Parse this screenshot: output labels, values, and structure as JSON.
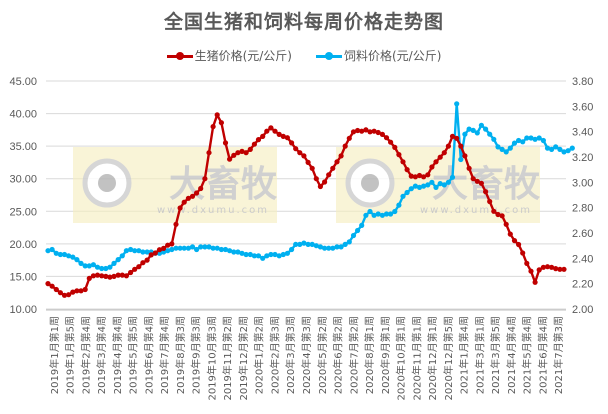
{
  "title": "全国生猪和饲料每周价格走势图",
  "legend": [
    {
      "label": "生猪价格(元/公斤)",
      "color": "#C00000"
    },
    {
      "label": "饲料价格(元/公斤)",
      "color": "#00B0F0"
    }
  ],
  "watermark": {
    "brand": "大畜牧",
    "url": "www.dxumu.com"
  },
  "chart_data": {
    "type": "line",
    "title": "全国生猪和饲料每周价格走势图",
    "xlabel": "",
    "ylabel_left": "",
    "ylabel_right": "",
    "y_left": {
      "min": 10,
      "max": 45,
      "ticks": [
        "10.00",
        "15.00",
        "20.00",
        "25.00",
        "30.00",
        "35.00",
        "40.00",
        "45.00"
      ]
    },
    "y_right": {
      "min": 2.0,
      "max": 3.8,
      "ticks": [
        "2.00",
        "2.20",
        "2.40",
        "2.60",
        "2.80",
        "3.00",
        "3.20",
        "3.40",
        "3.60",
        "3.80"
      ]
    },
    "grid": true,
    "legend_position": "top",
    "x_tick_labels": [
      "2019年1月第1周",
      "2019年1月第5周",
      "2019年2月第4周",
      "2019年3月第4周",
      "2019年4月第4周",
      "2019年5月第5周",
      "2019年6月第4周",
      "2019年7月第4周",
      "2019年8月第3周",
      "2019年9月第3周",
      "2019年10月第3周",
      "2019年11月第2周",
      "2019年12月第2周",
      "2020年1月第2周",
      "2020年2月第3周",
      "2020年3月第3周",
      "2020年4月第3周",
      "2020年5月第2周",
      "2020年6月第2周",
      "2020年7月第2周",
      "2020年8月第1周",
      "2020年9月第1周",
      "2020年10月第1周",
      "2020年11月第1周",
      "2020年12月第1周",
      "2020年12月第5周",
      "2021年1月第4周",
      "2021年3月第1周",
      "2021年3月第5周",
      "2021年4月第4周",
      "2021年5月第4周",
      "2021年6月第4周",
      "2021年7月第3周"
    ],
    "series": [
      {
        "name": "生猪价格(元/公斤)",
        "axis": "left",
        "color": "#C00000",
        "values": [
          13.9,
          13.5,
          13.0,
          12.5,
          12.1,
          12.2,
          12.6,
          12.8,
          12.8,
          13.0,
          14.7,
          15.1,
          15.2,
          15.1,
          15.0,
          14.9,
          15.0,
          15.2,
          15.2,
          15.1,
          15.6,
          16.1,
          16.5,
          17.1,
          17.5,
          18.3,
          18.6,
          19.1,
          19.3,
          19.8,
          20.0,
          23.0,
          25.5,
          26.4,
          27.0,
          27.3,
          27.8,
          28.5,
          30.0,
          34.0,
          38.0,
          39.8,
          38.6,
          35.5,
          33.0,
          33.6,
          34.0,
          34.2,
          34.0,
          34.5,
          35.3,
          36.0,
          36.5,
          37.3,
          37.8,
          37.3,
          36.8,
          36.5,
          36.3,
          35.5,
          34.6,
          34.0,
          33.5,
          32.5,
          31.6,
          30.0,
          28.8,
          29.5,
          30.6,
          31.6,
          32.6,
          33.5,
          35.0,
          36.2,
          37.2,
          37.4,
          37.3,
          37.5,
          37.2,
          37.3,
          37.1,
          36.8,
          36.3,
          35.6,
          34.8,
          33.7,
          32.6,
          31.4,
          30.4,
          30.3,
          30.5,
          30.3,
          30.6,
          31.8,
          32.6,
          33.3,
          34.0,
          35.0,
          36.5,
          36.2,
          35.0,
          33.5,
          31.6,
          30.0,
          29.6,
          29.3,
          28.0,
          26.5,
          25.0,
          24.5,
          24.3,
          23.0,
          21.5,
          20.5,
          19.9,
          18.6,
          17.0,
          15.8,
          14.1,
          16.0,
          16.4,
          16.5,
          16.4,
          16.2,
          16.1,
          16.1
        ],
        "peak": {
          "label": "2019年11月第1周",
          "value": 39.8
        },
        "trough": {
          "label": "2021年6月第4周",
          "value": 14.1
        }
      },
      {
        "name": "饲料价格(元/公斤)",
        "axis": "right",
        "color": "#00B0F0",
        "values": [
          2.46,
          2.47,
          2.44,
          2.43,
          2.43,
          2.42,
          2.41,
          2.39,
          2.36,
          2.34,
          2.34,
          2.35,
          2.33,
          2.32,
          2.32,
          2.33,
          2.36,
          2.39,
          2.42,
          2.46,
          2.47,
          2.46,
          2.46,
          2.45,
          2.45,
          2.45,
          2.44,
          2.44,
          2.45,
          2.46,
          2.47,
          2.48,
          2.48,
          2.48,
          2.48,
          2.49,
          2.47,
          2.49,
          2.49,
          2.49,
          2.48,
          2.48,
          2.47,
          2.47,
          2.46,
          2.45,
          2.45,
          2.44,
          2.43,
          2.43,
          2.42,
          2.42,
          2.4,
          2.42,
          2.43,
          2.43,
          2.42,
          2.43,
          2.44,
          2.47,
          2.51,
          2.51,
          2.52,
          2.51,
          2.51,
          2.5,
          2.49,
          2.48,
          2.48,
          2.48,
          2.49,
          2.49,
          2.51,
          2.53,
          2.58,
          2.62,
          2.66,
          2.74,
          2.77,
          2.74,
          2.75,
          2.74,
          2.75,
          2.75,
          2.77,
          2.82,
          2.89,
          2.92,
          2.95,
          2.97,
          2.96,
          2.97,
          2.98,
          3.0,
          2.96,
          2.99,
          2.98,
          3.0,
          3.04,
          3.62,
          3.18,
          3.38,
          3.42,
          3.41,
          3.39,
          3.45,
          3.42,
          3.38,
          3.34,
          3.28,
          3.26,
          3.24,
          3.27,
          3.31,
          3.33,
          3.32,
          3.35,
          3.35,
          3.34,
          3.35,
          3.33,
          3.27,
          3.26,
          3.28,
          3.26,
          3.24,
          3.25,
          3.27
        ],
        "peak": {
          "label": "2020年12月第5周",
          "value": 3.62
        }
      }
    ]
  }
}
